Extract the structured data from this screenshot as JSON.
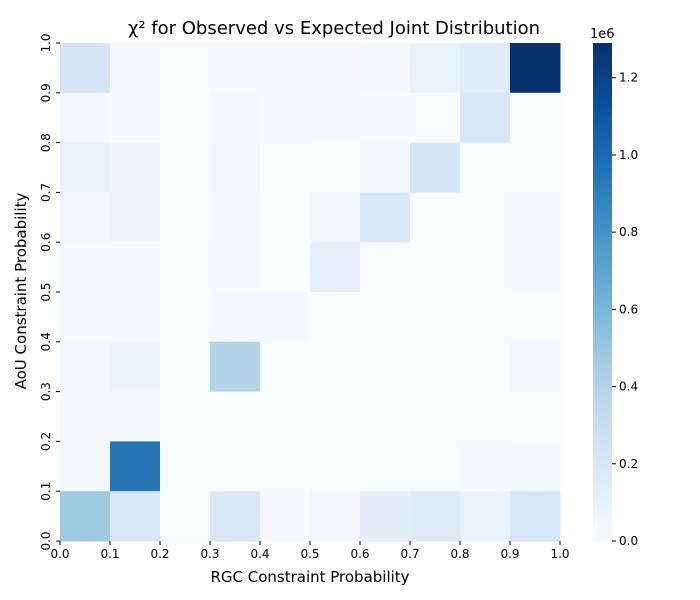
{
  "chart_data": {
    "type": "heatmap",
    "title": "χ² for Observed vs Expected Joint Distribution",
    "xlabel": "RGC Constraint Probability",
    "ylabel": "AoU Constraint Probability",
    "x_ticks": [
      "0.0",
      "0.1",
      "0.2",
      "0.3",
      "0.4",
      "0.5",
      "0.6",
      "0.7",
      "0.8",
      "0.9",
      "1.0"
    ],
    "y_ticks": [
      "0.0",
      "0.1",
      "0.2",
      "0.3",
      "0.4",
      "0.5",
      "0.6",
      "0.7",
      "0.8",
      "0.9",
      "1.0"
    ],
    "x_bins": [
      "0.0-0.1",
      "0.1-0.2",
      "0.2-0.3",
      "0.3-0.4",
      "0.4-0.5",
      "0.5-0.6",
      "0.6-0.7",
      "0.7-0.8",
      "0.8-0.9",
      "0.9-1.0"
    ],
    "y_bins": [
      "0.9-1.0",
      "0.8-0.9",
      "0.7-0.8",
      "0.6-0.7",
      "0.5-0.6",
      "0.4-0.5",
      "0.3-0.4",
      "0.2-0.3",
      "0.1-0.2",
      "0.0-0.1"
    ],
    "values": [
      [
        220000,
        15000,
        5000,
        10000,
        8000,
        8000,
        45000,
        95000,
        150000,
        1280000
      ],
      [
        30000,
        8000,
        5000,
        30000,
        8000,
        25000,
        8000,
        5000,
        210000,
        5000
      ],
      [
        90000,
        60000,
        5000,
        45000,
        5000,
        5000,
        40000,
        230000,
        5000,
        5000
      ],
      [
        45000,
        55000,
        5000,
        20000,
        5000,
        35000,
        190000,
        5000,
        5000,
        10000
      ],
      [
        12000,
        12000,
        5000,
        15000,
        5000,
        120000,
        5000,
        5000,
        5000,
        8000
      ],
      [
        12000,
        12000,
        5000,
        20000,
        20000,
        5000,
        5000,
        5000,
        5000,
        5000
      ],
      [
        40000,
        65000,
        5000,
        400000,
        5000,
        5000,
        5000,
        5000,
        5000,
        20000
      ],
      [
        8000,
        8000,
        5000,
        5000,
        5000,
        5000,
        5000,
        5000,
        5000,
        5000
      ],
      [
        25000,
        950000,
        5000,
        5000,
        5000,
        5000,
        5000,
        5000,
        10000,
        25000
      ],
      [
        480000,
        190000,
        5000,
        190000,
        8000,
        40000,
        130000,
        160000,
        90000,
        210000
      ]
    ],
    "colorbar": {
      "ticks": [
        "0.0",
        "0.2",
        "0.4",
        "0.6",
        "0.8",
        "1.0",
        "1.2"
      ],
      "tick_values": [
        0,
        200000,
        400000,
        600000,
        800000,
        1000000,
        1200000
      ],
      "offset_label": "1e6",
      "vmin": 0,
      "vmax": 1290000
    },
    "colormap": "Blues"
  }
}
